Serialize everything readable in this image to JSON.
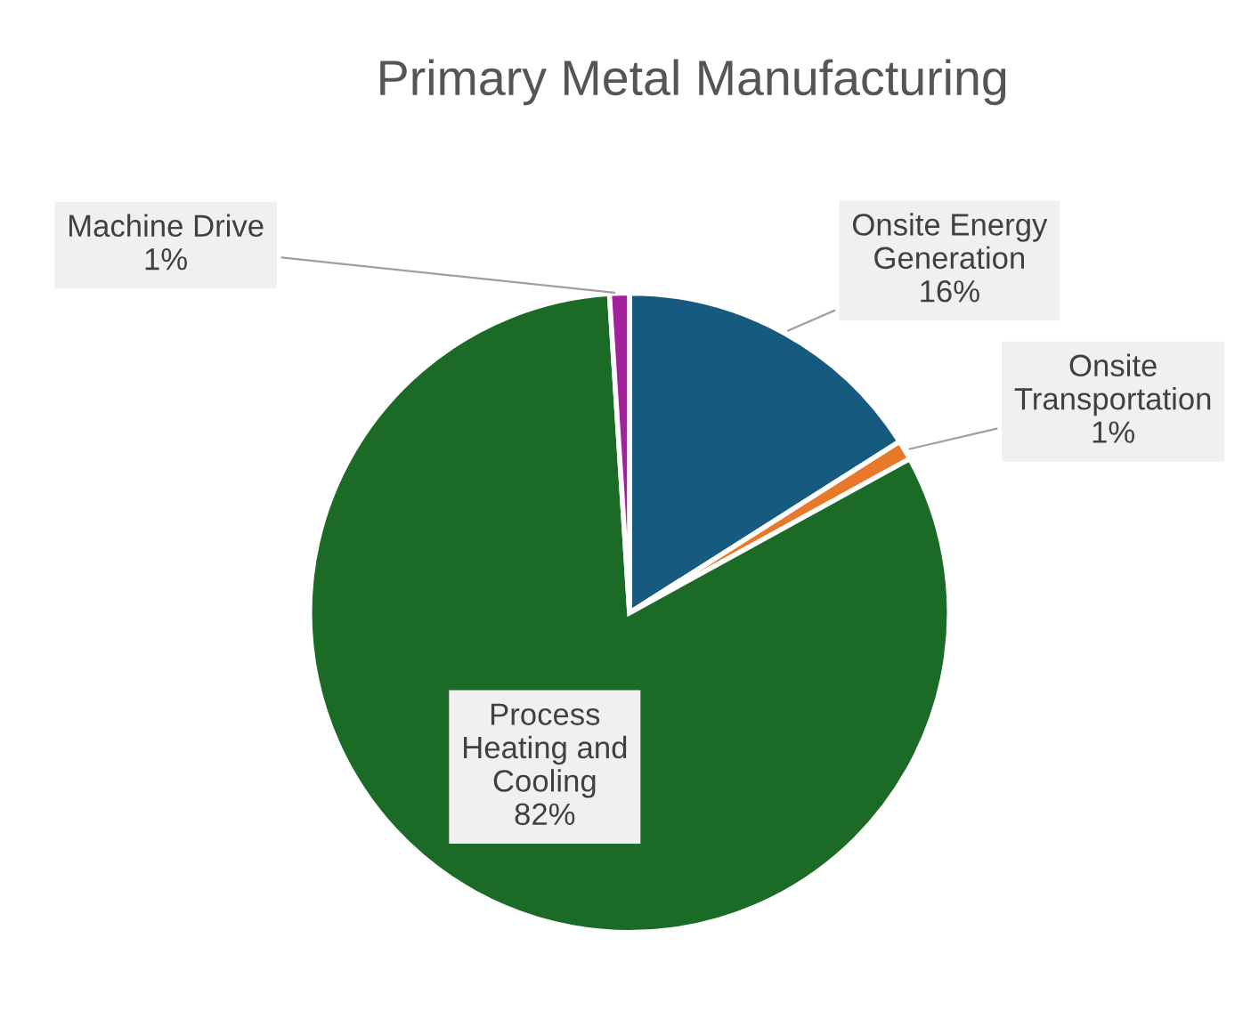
{
  "chart_data": {
    "type": "pie",
    "title": "Primary Metal Manufacturing",
    "categories": [
      "Onsite Energy Generation",
      "Onsite Transportation",
      "Process Heating and Cooling",
      "Machine Drive"
    ],
    "values": [
      16,
      1,
      82,
      1
    ],
    "value_labels": [
      "16%",
      "1%",
      "82%",
      "1%"
    ],
    "colors": [
      "#175a80",
      "#e8782a",
      "#1b6b27",
      "#a3219c"
    ]
  }
}
